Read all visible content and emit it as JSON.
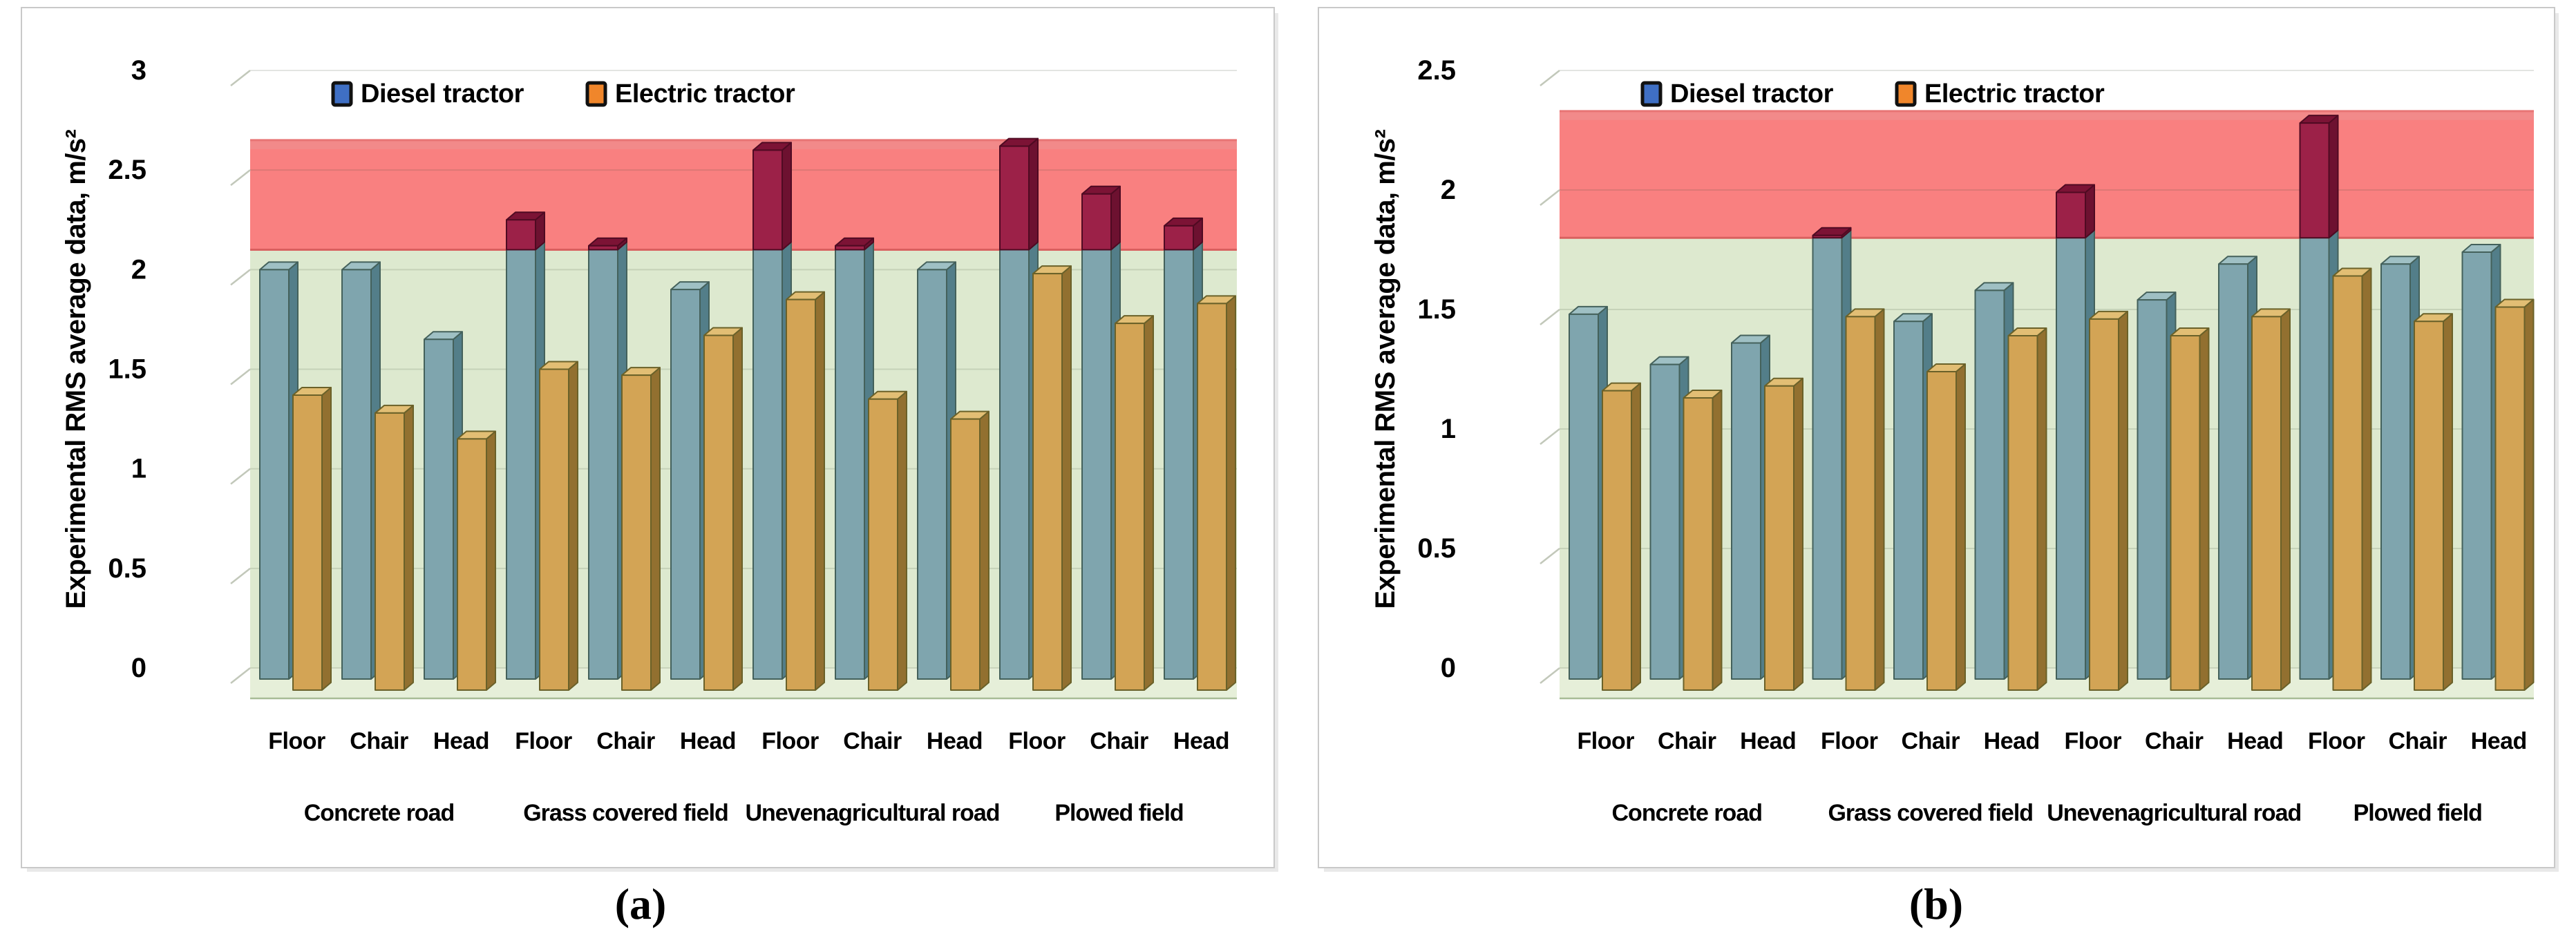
{
  "figure": {
    "captions": {
      "a": "(a)",
      "b": "(b)"
    }
  },
  "colors": {
    "red_zone": "#F98080",
    "red_zone_bevel": "#F28A8A",
    "red_zone_top_edge": "#E87575",
    "red_zone_bottom_edge": "#D9605F",
    "green_zone": "#DDE9CF",
    "floor": "#E6EFD9",
    "floor_edge": "#A8BC96",
    "gridline": "rgba(60,70,50,0.14)",
    "bevel_tick": "#C2C8BA",
    "panel_border": "#C9C9C9",
    "diesel_bar": {
      "front": "#7FA5AE",
      "side": "#537E89",
      "top": "#9FC0C4",
      "outline": "#44615B"
    },
    "electric_bar": {
      "front": "#D3A455",
      "side": "#927030",
      "top": "#E2BE74",
      "outline": "#6A6129"
    },
    "over_limit_bar": {
      "front": "#9C2148",
      "side": "#6D1130",
      "top": "#7C1335",
      "outline": "#4F0A22"
    },
    "legend_diesel": "#3F6FC4",
    "legend_electric": "#F0862B"
  },
  "chart_data": [
    {
      "id": "a",
      "type": "bar",
      "title": "",
      "xlabel": "",
      "ylabel": "Experimental RMS average data, m/s²",
      "ylim": [
        0,
        3
      ],
      "ymax": 3,
      "ytick_step": 0.5,
      "grid": true,
      "legend_position": "top-center",
      "green_zone": [
        0,
        2.1
      ],
      "red_zone": [
        2.1,
        2.65
      ],
      "legend": [
        {
          "label": "Diesel tractor",
          "color": "#3F6FC4"
        },
        {
          "label": "Electric tractor",
          "color": "#F0862B"
        }
      ],
      "groups": [
        "Concrete road",
        "Grass covered field",
        "Unevenagricultural road",
        "Plowed field"
      ],
      "categories": [
        "Floor",
        "Chair",
        "Head",
        "Floor",
        "Chair",
        "Head",
        "Floor",
        "Chair",
        "Head",
        "Floor",
        "Chair",
        "Head"
      ],
      "series": [
        {
          "name": "Diesel tractor",
          "values": [
            2.0,
            2.0,
            1.65,
            2.25,
            2.12,
            1.9,
            2.6,
            2.12,
            2.0,
            2.62,
            2.38,
            2.22
          ]
        },
        {
          "name": "Electric tractor",
          "values": [
            1.37,
            1.28,
            1.15,
            1.5,
            1.47,
            1.67,
            1.85,
            1.35,
            1.25,
            1.98,
            1.73,
            1.83
          ]
        }
      ]
    },
    {
      "id": "b",
      "type": "bar",
      "title": "",
      "xlabel": "",
      "ylabel": "Experimental RMS average data, m/s²",
      "ylim": [
        0,
        2.5
      ],
      "ymax": 2.5,
      "ytick_step": 0.5,
      "grid": true,
      "legend_position": "top-center",
      "green_zone": [
        0,
        1.8
      ],
      "red_zone": [
        1.8,
        2.33
      ],
      "legend": [
        {
          "label": "Diesel tractor",
          "color": "#3F6FC4"
        },
        {
          "label": "Electric tractor",
          "color": "#F0862B"
        }
      ],
      "groups": [
        "Concrete road",
        "Grass covered field",
        "Unevenagricultural road",
        "Plowed field"
      ],
      "categories": [
        "Floor",
        "Chair",
        "Head",
        "Floor",
        "Chair",
        "Head",
        "Floor",
        "Chair",
        "Head",
        "Floor",
        "Chair",
        "Head"
      ],
      "series": [
        {
          "name": "Diesel tractor",
          "values": [
            1.48,
            1.27,
            1.36,
            1.81,
            1.45,
            1.58,
            1.99,
            1.54,
            1.69,
            2.28,
            1.69,
            1.74
          ]
        },
        {
          "name": "Electric tractor",
          "values": [
            1.16,
            1.13,
            1.18,
            1.47,
            1.24,
            1.39,
            1.46,
            1.39,
            1.47,
            1.64,
            1.45,
            1.51
          ]
        }
      ]
    }
  ]
}
